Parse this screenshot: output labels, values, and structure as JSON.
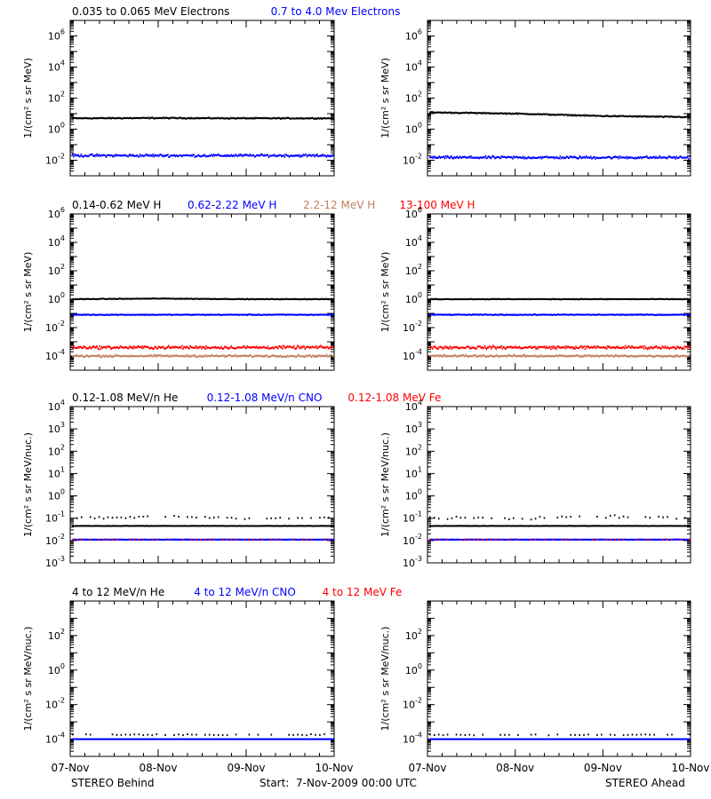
{
  "chart_data": [
    {
      "type": "scatter",
      "scale": "log",
      "ylim_exp": [
        -3,
        7
      ],
      "ylabel": "1/(cm² s sr MeV)",
      "yticks": [
        -2,
        0,
        2,
        4,
        6
      ],
      "legend": [
        {
          "text": "0.035 to 0.065 MeV Electrons",
          "color": "#000000"
        },
        {
          "text": "0.7 to 4.0 Mev Electrons",
          "color": "#0000ff"
        }
      ],
      "panels": [
        {
          "side": "STEREO Behind",
          "series": [
            {
              "color": "#000000",
              "values": [
                5.0,
                5.2,
                5.0,
                5.0
              ],
              "jitter": 0.05
            },
            {
              "color": "#0000ff",
              "values": [
                0.02,
                0.02,
                0.02,
                0.02
              ],
              "jitter": 0.12
            }
          ]
        },
        {
          "side": "STEREO Ahead",
          "series": [
            {
              "color": "#000000",
              "values": [
                12,
                10,
                7,
                6
              ],
              "jitter": 0.05
            },
            {
              "color": "#0000ff",
              "values": [
                0.015,
                0.015,
                0.015,
                0.015
              ],
              "jitter": 0.12
            }
          ]
        }
      ]
    },
    {
      "type": "scatter",
      "scale": "log",
      "ylim_exp": [
        -5,
        6
      ],
      "ylabel": "1/(cm² s sr MeV)",
      "yticks": [
        -4,
        -2,
        0,
        2,
        4,
        6
      ],
      "legend": [
        {
          "text": "0.14-0.62 MeV H",
          "color": "#000000"
        },
        {
          "text": "0.62-2.22 MeV H",
          "color": "#0000ff"
        },
        {
          "text": "2.2-12 MeV H",
          "color": "#c08060"
        },
        {
          "text": "13-100 MeV H",
          "color": "#ff0000"
        }
      ],
      "panels": [
        {
          "side": "STEREO Behind",
          "series": [
            {
              "color": "#000000",
              "values": [
                1.0,
                1.1,
                1.0,
                1.0
              ],
              "jitter": 0.03
            },
            {
              "color": "#0000ff",
              "values": [
                0.08,
                0.08,
                0.08,
                0.08
              ],
              "jitter": 0.04
            },
            {
              "color": "#ff0000",
              "values": [
                0.0004,
                0.0004,
                0.0004,
                0.0004
              ],
              "jitter": 0.15
            },
            {
              "color": "#c08060",
              "values": [
                0.0001,
                0.0001,
                0.0001,
                0.0001
              ],
              "jitter": 0.1
            }
          ]
        },
        {
          "side": "STEREO Ahead",
          "series": [
            {
              "color": "#000000",
              "values": [
                1.0,
                1.0,
                1.0,
                1.0
              ],
              "jitter": 0.03
            },
            {
              "color": "#0000ff",
              "values": [
                0.08,
                0.08,
                0.08,
                0.08
              ],
              "jitter": 0.04
            },
            {
              "color": "#ff0000",
              "values": [
                0.0004,
                0.0004,
                0.0004,
                0.0004
              ],
              "jitter": 0.15
            },
            {
              "color": "#c08060",
              "values": [
                0.0001,
                0.0001,
                0.0001,
                0.0001
              ],
              "jitter": 0.1
            }
          ]
        }
      ]
    },
    {
      "type": "scatter",
      "scale": "log",
      "ylim_exp": [
        -3,
        4
      ],
      "ylabel": "1/(cm² s sr MeV/nuc.)",
      "yticks": [
        -3,
        -2,
        -1,
        0,
        1,
        2,
        3,
        4
      ],
      "legend": [
        {
          "text": "0.12-1.08 MeV/n He",
          "color": "#000000"
        },
        {
          "text": "0.12-1.08 MeV/n CNO",
          "color": "#0000ff"
        },
        {
          "text": "0.12-1.08 MeV Fe",
          "color": "#ff0000"
        }
      ],
      "panels": [
        {
          "side": "STEREO Behind",
          "series": [
            {
              "color": "#000000",
              "values": [
                0.045,
                0.045,
                0.045,
                0.045
              ],
              "jitter": 0.01
            },
            {
              "color": "#000000",
              "values": [
                0.1,
                0.12,
                0.1,
                0.1
              ],
              "jitter": 0.08,
              "sparse": true
            },
            {
              "color": "#0000ff",
              "values": [
                0.011,
                0.011,
                0.011,
                0.011
              ],
              "jitter": 0.01
            },
            {
              "color": "#ff0000",
              "values": [
                0.011,
                0.011,
                0.011,
                0.011
              ],
              "jitter": 0.01,
              "sparse": true
            }
          ]
        },
        {
          "side": "STEREO Ahead",
          "series": [
            {
              "color": "#000000",
              "values": [
                0.045,
                0.045,
                0.045,
                0.045
              ],
              "jitter": 0.01
            },
            {
              "color": "#000000",
              "values": [
                0.1,
                0.1,
                0.12,
                0.1
              ],
              "jitter": 0.08,
              "sparse": true
            },
            {
              "color": "#0000ff",
              "values": [
                0.011,
                0.011,
                0.011,
                0.011
              ],
              "jitter": 0.01
            },
            {
              "color": "#ff0000",
              "values": [
                0.011,
                0.011,
                0.011,
                0.011
              ],
              "jitter": 0.01,
              "sparse": true
            }
          ]
        }
      ]
    },
    {
      "type": "scatter",
      "scale": "log",
      "ylim_exp": [
        -5,
        4
      ],
      "ylabel": "1/(cm² s sr MeV/nuc.)",
      "yticks": [
        -4,
        -2,
        0,
        2
      ],
      "legend": [
        {
          "text": "4 to 12 MeV/n He",
          "color": "#000000"
        },
        {
          "text": "4 to 12 MeV/n CNO",
          "color": "#0000ff"
        },
        {
          "text": "4 to 12 MeV Fe",
          "color": "#ff0000"
        }
      ],
      "panels": [
        {
          "side": "STEREO Behind",
          "series": [
            {
              "color": "#0000ff",
              "values": [
                0.0001,
                0.0001,
                0.0001,
                0.0001
              ],
              "jitter": 0.0
            },
            {
              "color": "#000000",
              "values": [
                0.00018,
                0.00018,
                0.00018,
                0.00018
              ],
              "jitter": 0.05,
              "sparse": true
            }
          ]
        },
        {
          "side": "STEREO Ahead",
          "series": [
            {
              "color": "#0000ff",
              "values": [
                0.0001,
                0.0001,
                0.0001,
                0.0001
              ],
              "jitter": 0.0
            },
            {
              "color": "#000000",
              "values": [
                0.00018,
                0.00018,
                0.00018,
                0.00018
              ],
              "jitter": 0.05,
              "sparse": true
            }
          ]
        }
      ]
    }
  ],
  "x_ticks": [
    "07-Nov",
    "08-Nov",
    "09-Nov",
    "10-Nov"
  ],
  "footer": {
    "left": "STEREO Behind",
    "center": "Start:  7-Nov-2009 00:00 UTC",
    "right": "STEREO Ahead"
  }
}
